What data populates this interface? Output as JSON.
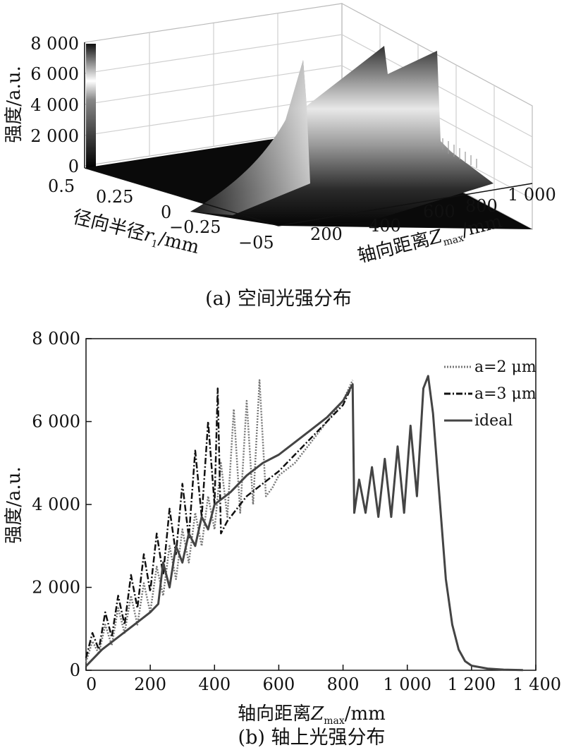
{
  "chart_data": [
    {
      "type": "surface",
      "panel": "a",
      "caption": "(a) 空间光强分布",
      "zlabel": "强度/a.u.",
      "zticks": [
        "0",
        "2 000",
        "4 000",
        "6 000",
        "8 000"
      ],
      "zlim": [
        0,
        8000
      ],
      "ylabel_main": "径向半径",
      "ylabel_var": "r",
      "ylabel_sub": "1",
      "ylabel_unit": "/mm",
      "yticks": [
        "0.5",
        "0.25",
        "0",
        "−0.25",
        "−05"
      ],
      "xlabel_main": "轴向距离",
      "xlabel_var": "Z",
      "xlabel_sub": "max",
      "xlabel_unit": "/mm",
      "xticks": [
        "200",
        "400",
        "600",
        "800",
        "1 000"
      ],
      "colormap": "gray",
      "colorbar_range": [
        0,
        8000
      ],
      "peak_profile": {
        "z": [
          0,
          100,
          200,
          300,
          350,
          400,
          420,
          440,
          500,
          600,
          700,
          800,
          830,
          850,
          900,
          1000,
          1060,
          1100,
          1200
        ],
        "intensity": [
          0,
          400,
          1000,
          1800,
          2600,
          3500,
          6800,
          3800,
          4300,
          5000,
          5600,
          6500,
          7200,
          5800,
          6000,
          6700,
          7200,
          3000,
          0
        ]
      }
    },
    {
      "type": "line",
      "panel": "b",
      "caption": "(b) 轴上光强分布",
      "xlabel_main": "轴向距离",
      "xlabel_var": "Z",
      "xlabel_sub": "max",
      "xlabel_unit": "/mm",
      "ylabel": "强度/a.u.",
      "xlim": [
        0,
        1400
      ],
      "ylim": [
        0,
        8000
      ],
      "xticks": [
        0,
        200,
        400,
        600,
        800,
        1000,
        1200,
        1400
      ],
      "xtick_labels": [
        "0",
        "200",
        "400",
        "600",
        "800",
        "1 000",
        "1 200",
        "1 400"
      ],
      "yticks": [
        0,
        2000,
        4000,
        6000,
        8000
      ],
      "ytick_labels": [
        "0",
        "2 000",
        "4 000",
        "6 000",
        "8 000"
      ],
      "legend_position": "top-right",
      "series": [
        {
          "name": "a=2 μm",
          "style": "dotted",
          "color": "#777777",
          "x": [
            0,
            20,
            40,
            60,
            80,
            100,
            120,
            140,
            160,
            180,
            200,
            220,
            240,
            260,
            280,
            300,
            320,
            340,
            360,
            380,
            400,
            420,
            440,
            460,
            480,
            500,
            520,
            540,
            560,
            580,
            600,
            650,
            700,
            750,
            800,
            830
          ],
          "y": [
            200,
            700,
            400,
            1100,
            600,
            1500,
            900,
            1800,
            1100,
            2100,
            1400,
            2500,
            1800,
            3000,
            2200,
            3400,
            2600,
            3800,
            3000,
            4200,
            3400,
            5000,
            3700,
            6300,
            3800,
            6500,
            4000,
            7000,
            4200,
            4400,
            4700,
            5000,
            5500,
            6000,
            6500,
            7000
          ]
        },
        {
          "name": "a=3 μm",
          "style": "dashdot",
          "color": "#111111",
          "x": [
            0,
            20,
            40,
            60,
            80,
            100,
            120,
            140,
            160,
            180,
            200,
            220,
            240,
            260,
            280,
            300,
            320,
            340,
            360,
            380,
            400,
            410,
            420,
            440,
            460,
            480,
            500,
            550,
            600,
            650,
            700,
            750,
            800,
            830
          ],
          "y": [
            300,
            900,
            500,
            1400,
            800,
            1800,
            1100,
            2300,
            1500,
            2800,
            1900,
            3300,
            2300,
            3900,
            2800,
            4500,
            3200,
            5300,
            3700,
            6000,
            4000,
            6800,
            3300,
            3600,
            3800,
            4000,
            4200,
            4500,
            4800,
            5200,
            5600,
            6000,
            6400,
            6900
          ]
        },
        {
          "name": "ideal",
          "style": "solid",
          "color": "#444444",
          "x": [
            0,
            50,
            100,
            150,
            200,
            225,
            240,
            260,
            280,
            300,
            320,
            340,
            360,
            380,
            400,
            450,
            500,
            550,
            600,
            650,
            700,
            750,
            800,
            830,
            835,
            850,
            870,
            890,
            910,
            930,
            950,
            970,
            990,
            1010,
            1030,
            1050,
            1065,
            1080,
            1100,
            1120,
            1140,
            1160,
            1180,
            1200,
            1250,
            1300,
            1360
          ],
          "y": [
            100,
            500,
            800,
            1100,
            1400,
            1600,
            2600,
            2000,
            3000,
            2600,
            3300,
            3000,
            3700,
            3400,
            4000,
            4300,
            4700,
            5000,
            5200,
            5500,
            5800,
            6100,
            6500,
            6900,
            3800,
            4600,
            3800,
            4900,
            3700,
            5100,
            3700,
            5400,
            3800,
            5900,
            4200,
            6800,
            7100,
            6200,
            4200,
            2200,
            1100,
            500,
            220,
            110,
            40,
            15,
            5
          ]
        }
      ]
    }
  ]
}
